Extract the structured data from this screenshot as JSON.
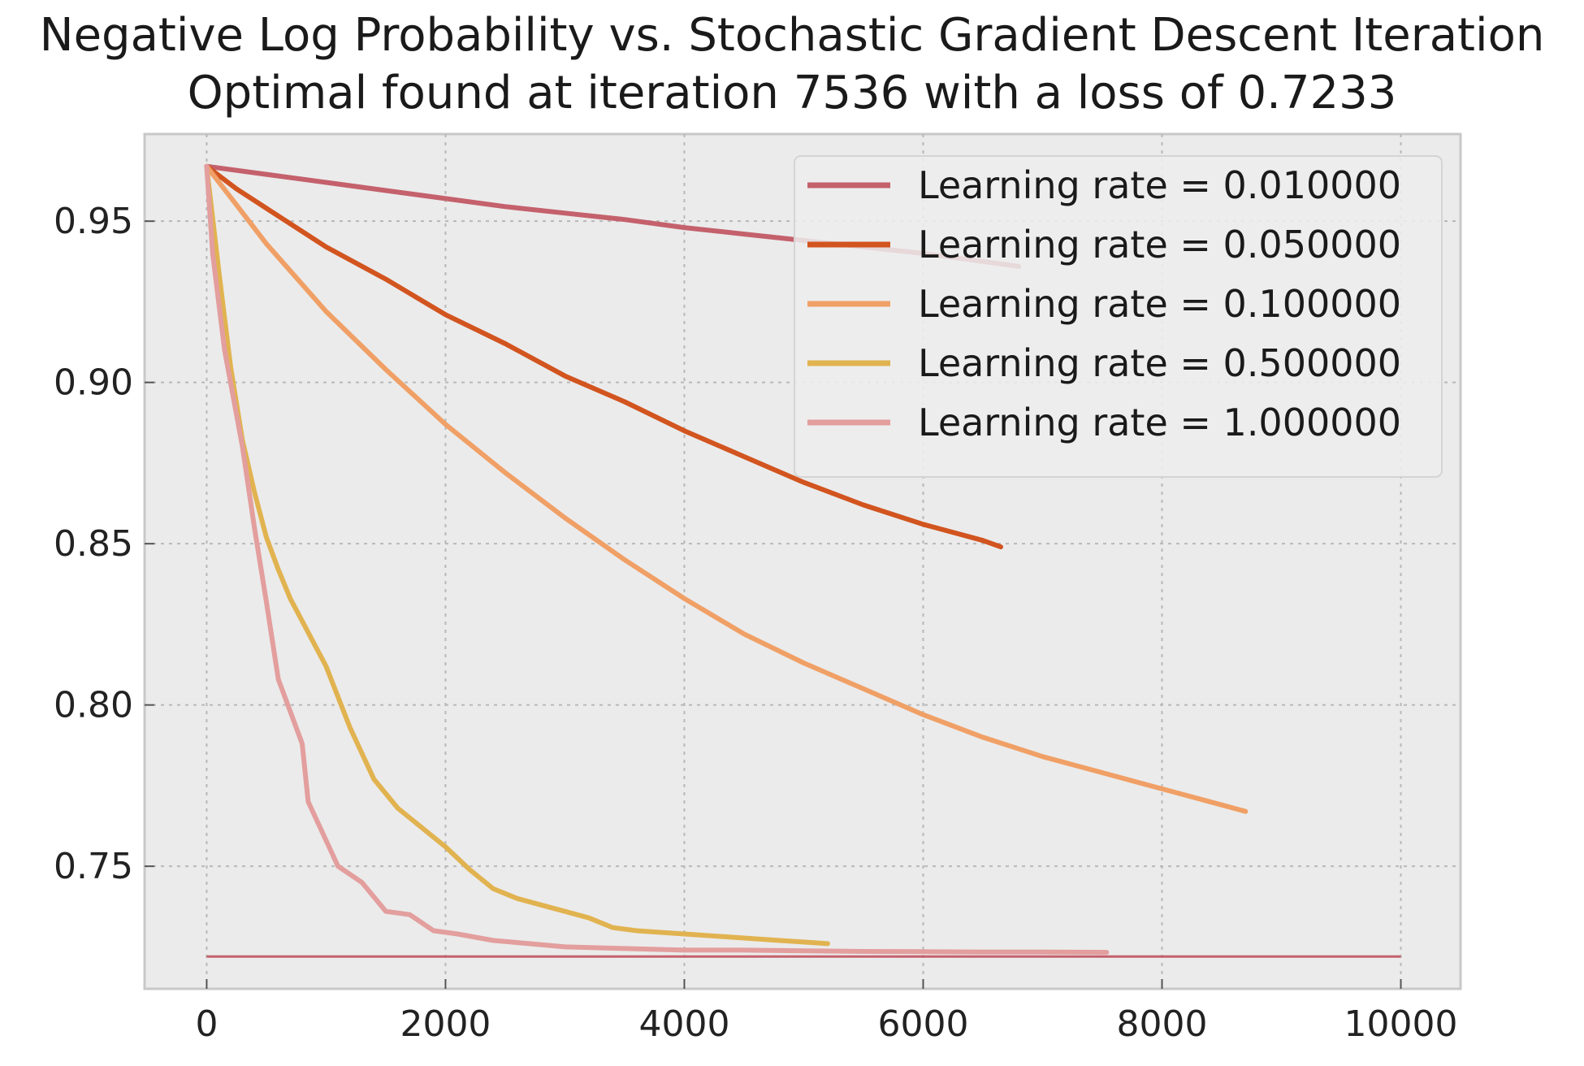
{
  "chart_data": {
    "type": "line",
    "title": "Negative Log Probability vs. Stochastic Gradient Descent Iteration",
    "subtitle": "Optimal found at iteration 7536 with a loss of 0.7233",
    "xlabel": "",
    "ylabel": "",
    "xlim": [
      -520,
      10500
    ],
    "ylim": [
      0.712,
      0.977
    ],
    "x_ticks": [
      0,
      2000,
      4000,
      6000,
      8000,
      10000
    ],
    "x_tick_labels": [
      "0",
      "2000",
      "4000",
      "6000",
      "8000",
      "10000"
    ],
    "y_ticks": [
      0.75,
      0.8,
      0.85,
      0.9,
      0.95
    ],
    "y_tick_labels": [
      "0.75",
      "0.80",
      "0.85",
      "0.90",
      "0.95"
    ],
    "grid": true,
    "legend_position": "top-right",
    "background": "#ebebeb",
    "series": [
      {
        "name": "Learning rate = 0.010000",
        "color": "#c4616c",
        "x": [
          0,
          500,
          1000,
          1500,
          2000,
          2500,
          3000,
          3500,
          4000,
          4500,
          5000,
          5500,
          6000,
          6500,
          6800
        ],
        "y": [
          0.967,
          0.9645,
          0.962,
          0.9595,
          0.957,
          0.9545,
          0.9525,
          0.9505,
          0.948,
          0.946,
          0.944,
          0.942,
          0.94,
          0.9375,
          0.936
        ]
      },
      {
        "name": "Learning rate = 0.050000",
        "color": "#d2541f",
        "x": [
          0,
          250,
          500,
          1000,
          1500,
          2000,
          2500,
          3000,
          3500,
          4000,
          4500,
          5000,
          5500,
          6000,
          6500,
          6650
        ],
        "y": [
          0.967,
          0.96,
          0.954,
          0.942,
          0.932,
          0.921,
          0.912,
          0.902,
          0.894,
          0.885,
          0.877,
          0.869,
          0.862,
          0.856,
          0.851,
          0.849
        ]
      },
      {
        "name": "Learning rate = 0.100000",
        "color": "#f0a066",
        "x": [
          0,
          250,
          500,
          1000,
          1500,
          2000,
          2500,
          3000,
          3500,
          4000,
          4500,
          5000,
          5500,
          6000,
          6500,
          7000,
          7500,
          8000,
          8500,
          8700
        ],
        "y": [
          0.967,
          0.955,
          0.943,
          0.922,
          0.904,
          0.887,
          0.872,
          0.858,
          0.845,
          0.833,
          0.822,
          0.813,
          0.805,
          0.797,
          0.79,
          0.784,
          0.779,
          0.774,
          0.769,
          0.767
        ]
      },
      {
        "name": "Learning rate = 0.500000",
        "color": "#e1b350",
        "x": [
          0,
          100,
          200,
          300,
          400,
          500,
          600,
          700,
          800,
          1000,
          1200,
          1400,
          1600,
          1800,
          2000,
          2200,
          2400,
          2600,
          2800,
          3000,
          3200,
          3400,
          3600,
          4000,
          4400,
          4800,
          5200
        ],
        "y": [
          0.967,
          0.935,
          0.905,
          0.882,
          0.866,
          0.852,
          0.842,
          0.833,
          0.826,
          0.812,
          0.793,
          0.777,
          0.768,
          0.762,
          0.756,
          0.749,
          0.743,
          0.74,
          0.738,
          0.736,
          0.734,
          0.731,
          0.73,
          0.729,
          0.728,
          0.727,
          0.726
        ]
      },
      {
        "name": "Learning rate = 1.000000",
        "color": "#e39e9e",
        "x": [
          0,
          50,
          100,
          150,
          200,
          300,
          400,
          500,
          600,
          700,
          800,
          850,
          950,
          1100,
          1300,
          1500,
          1700,
          1900,
          2100,
          2400,
          2700,
          3000,
          3500,
          4000,
          4500,
          5000,
          5500,
          6000,
          6500,
          7000,
          7536
        ],
        "y": [
          0.967,
          0.94,
          0.925,
          0.91,
          0.9,
          0.88,
          0.855,
          0.832,
          0.808,
          0.798,
          0.788,
          0.77,
          0.762,
          0.75,
          0.745,
          0.736,
          0.735,
          0.73,
          0.729,
          0.727,
          0.726,
          0.725,
          0.7245,
          0.724,
          0.724,
          0.7238,
          0.7236,
          0.7235,
          0.7234,
          0.7234,
          0.7233
        ]
      }
    ],
    "reference_lines": [
      {
        "orientation": "horizontal",
        "y": 0.722,
        "x_start": 0,
        "x_end": 10000,
        "color": "#c4616c"
      }
    ]
  }
}
